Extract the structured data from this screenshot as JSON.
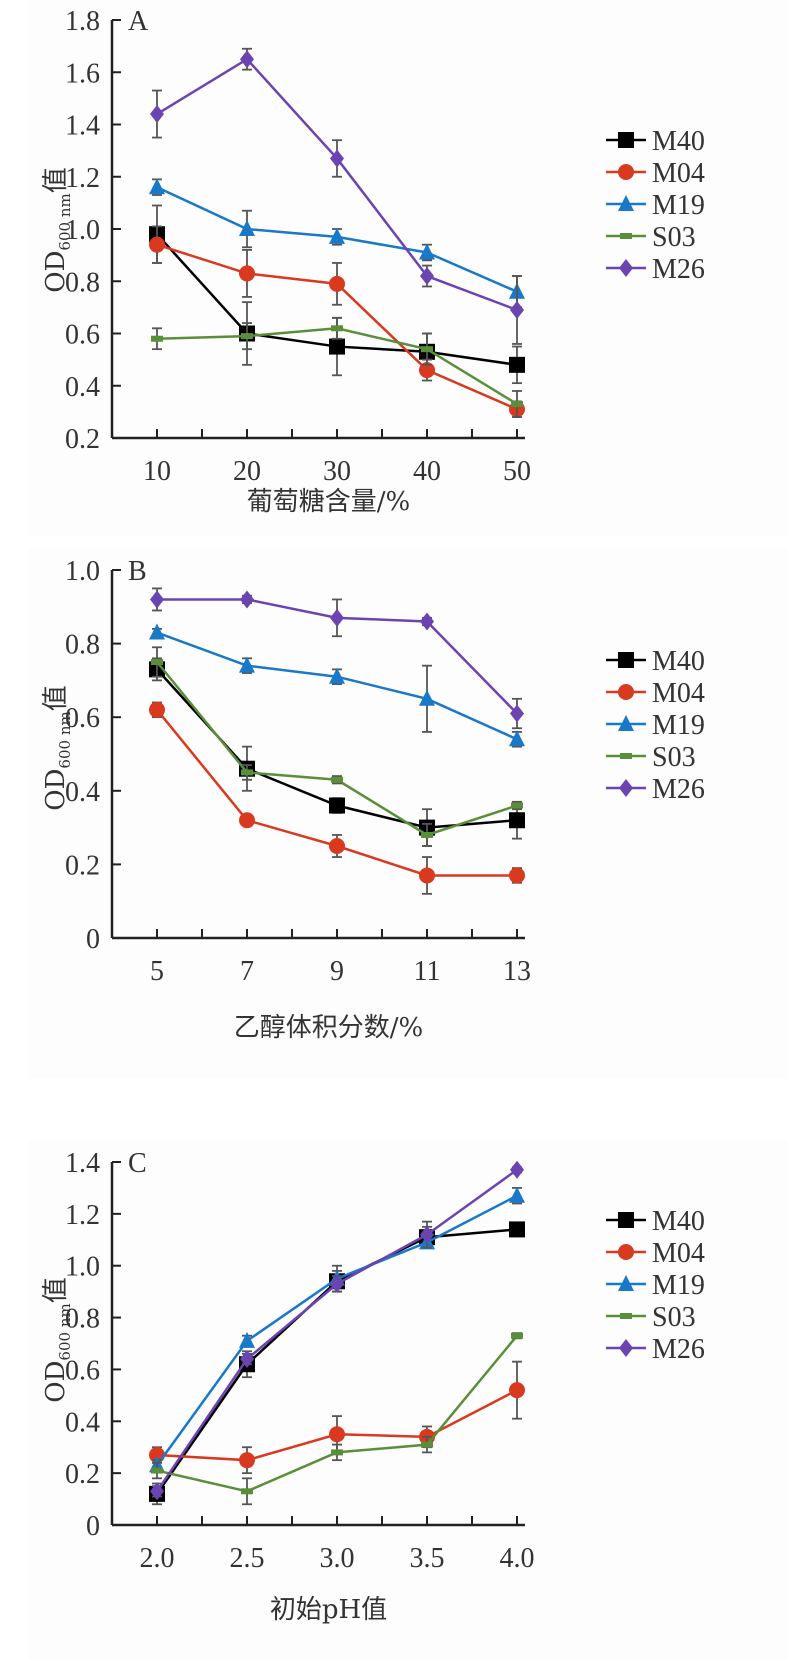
{
  "chart_data": [
    {
      "type": "line",
      "panel": "A",
      "xlabel": "葡萄糖含量/%",
      "ylabel_main": "OD",
      "ylabel_sub": "600 nm",
      "ylabel_suffix": "值",
      "x": [
        10,
        20,
        30,
        40,
        50
      ],
      "xticks": [
        "10",
        "20",
        "30",
        "40",
        "50"
      ],
      "ylim": [
        0.2,
        1.8
      ],
      "yticks": [
        "0.2",
        "0.4",
        "0.6",
        "0.8",
        "1.0",
        "1.2",
        "1.4",
        "1.6",
        "1.8"
      ],
      "legend_position": "right",
      "series": [
        {
          "name": "M40",
          "color": "#000000",
          "marker": "square",
          "values": [
            0.98,
            0.6,
            0.55,
            0.53,
            0.48
          ],
          "errors": [
            0.11,
            0.12,
            0.11,
            0.07,
            0.07
          ]
        },
        {
          "name": "M04",
          "color": "#d9391f",
          "marker": "circle",
          "values": [
            0.94,
            0.83,
            0.79,
            0.46,
            0.31
          ],
          "errors": [
            0.07,
            0.09,
            0.08,
            0.04,
            0.03
          ]
        },
        {
          "name": "M19",
          "color": "#1a78c8",
          "marker": "triangle",
          "values": [
            1.16,
            1.0,
            0.97,
            0.91,
            0.76
          ],
          "errors": [
            0.03,
            0.07,
            0.03,
            0.03,
            0.06
          ]
        },
        {
          "name": "S03",
          "color": "#5a8f3a",
          "marker": "dash",
          "values": [
            0.58,
            0.59,
            0.62,
            0.54,
            0.33
          ],
          "errors": [
            0.04,
            0.05,
            0.04,
            0.06,
            0.05
          ]
        },
        {
          "name": "M26",
          "color": "#6a44b0",
          "marker": "diamond",
          "values": [
            1.44,
            1.65,
            1.27,
            0.82,
            0.69
          ],
          "errors": [
            0.09,
            0.04,
            0.07,
            0.04,
            0.13
          ]
        }
      ]
    },
    {
      "type": "line",
      "panel": "B",
      "xlabel": "乙醇体积分数/%",
      "ylabel_main": "OD",
      "ylabel_sub": "600 nm",
      "ylabel_suffix": "值",
      "x": [
        5,
        7,
        9,
        11,
        13
      ],
      "xticks": [
        "5",
        "7",
        "9",
        "11",
        "13"
      ],
      "ylim": [
        0,
        1.0
      ],
      "yticks": [
        "0",
        "0.2",
        "0.4",
        "0.6",
        "0.8",
        "1.0"
      ],
      "legend_position": "right",
      "series": [
        {
          "name": "M40",
          "color": "#000000",
          "marker": "square",
          "values": [
            0.73,
            0.46,
            0.36,
            0.3,
            0.32
          ],
          "errors": [
            0.03,
            0.06,
            0.02,
            0.05,
            0.05
          ]
        },
        {
          "name": "M04",
          "color": "#d9391f",
          "marker": "circle",
          "values": [
            0.62,
            0.32,
            0.25,
            0.17,
            0.17
          ],
          "errors": [
            0.02,
            0.01,
            0.03,
            0.05,
            0.02
          ]
        },
        {
          "name": "M19",
          "color": "#1a78c8",
          "marker": "triangle",
          "values": [
            0.83,
            0.74,
            0.71,
            0.65,
            0.54
          ],
          "errors": [
            0.01,
            0.02,
            0.02,
            0.09,
            0.02
          ]
        },
        {
          "name": "S03",
          "color": "#5a8f3a",
          "marker": "dash",
          "values": [
            0.75,
            0.45,
            0.43,
            0.28,
            0.36
          ],
          "errors": [
            0.04,
            0.02,
            0.01,
            0.03,
            0.01
          ]
        },
        {
          "name": "M26",
          "color": "#6a44b0",
          "marker": "diamond",
          "values": [
            0.92,
            0.92,
            0.87,
            0.86,
            0.61
          ],
          "errors": [
            0.03,
            0.01,
            0.05,
            0.01,
            0.04
          ]
        }
      ]
    },
    {
      "type": "line",
      "panel": "C",
      "xlabel": "初始pH值",
      "ylabel_main": "OD",
      "ylabel_sub": "600 nm",
      "ylabel_suffix": "值",
      "x": [
        2.0,
        2.5,
        3.0,
        3.5,
        4.0
      ],
      "xticks": [
        "2.0",
        "2.5",
        "3.0",
        "3.5",
        "4.0"
      ],
      "ylim": [
        0,
        1.4
      ],
      "yticks": [
        "0",
        "0.2",
        "0.4",
        "0.6",
        "0.8",
        "1.0",
        "1.2",
        "1.4"
      ],
      "legend_position": "right",
      "series": [
        {
          "name": "M40",
          "color": "#000000",
          "marker": "square",
          "values": [
            0.12,
            0.62,
            0.94,
            1.11,
            1.14
          ],
          "errors": [
            0.04,
            0.05,
            0.04,
            0.04,
            0.01
          ]
        },
        {
          "name": "M04",
          "color": "#d9391f",
          "marker": "circle",
          "values": [
            0.27,
            0.25,
            0.35,
            0.34,
            0.52
          ],
          "errors": [
            0.03,
            0.05,
            0.07,
            0.04,
            0.11
          ]
        },
        {
          "name": "M19",
          "color": "#1a78c8",
          "marker": "triangle",
          "values": [
            0.23,
            0.71,
            0.95,
            1.09,
            1.27
          ],
          "errors": [
            0.02,
            0.02,
            0.05,
            0.02,
            0.03
          ]
        },
        {
          "name": "S03",
          "color": "#5a8f3a",
          "marker": "dash",
          "values": [
            0.21,
            0.13,
            0.28,
            0.31,
            0.73
          ],
          "errors": [
            0.03,
            0.05,
            0.03,
            0.03,
            0.01
          ]
        },
        {
          "name": "M26",
          "color": "#6a44b0",
          "marker": "diamond",
          "values": [
            0.13,
            0.64,
            0.93,
            1.12,
            1.37
          ],
          "errors": [
            0.02,
            0.02,
            0.03,
            0.05,
            0.01
          ]
        }
      ]
    }
  ]
}
